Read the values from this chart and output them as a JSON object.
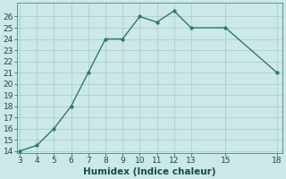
{
  "x": [
    3,
    4,
    5,
    6,
    7,
    8,
    9,
    10,
    11,
    12,
    13,
    15,
    18
  ],
  "y": [
    14,
    14.5,
    16,
    18,
    21,
    24,
    24,
    26,
    25.5,
    26.5,
    25,
    25,
    21
  ],
  "xlim_min": 3,
  "xlim_max": 18,
  "ylim_min": 14,
  "ylim_max": 27,
  "xticks": [
    3,
    4,
    5,
    6,
    7,
    8,
    9,
    10,
    11,
    12,
    13,
    15,
    18
  ],
  "yticks": [
    14,
    15,
    16,
    17,
    18,
    19,
    20,
    21,
    22,
    23,
    24,
    25,
    26
  ],
  "xlabel": "Humidex (Indice chaleur)",
  "line_color": "#2d7a6e",
  "marker_color": "#2d7a6e",
  "marker_size": 2.5,
  "bg_color": "#cce8e8",
  "grid_color_major": "#aacfcf",
  "grid_color_minor": "#bbdbdb",
  "tick_color": "#1a4a4a",
  "xlabel_fontsize": 7.5,
  "tick_fontsize": 6.5,
  "line_width": 1.0
}
